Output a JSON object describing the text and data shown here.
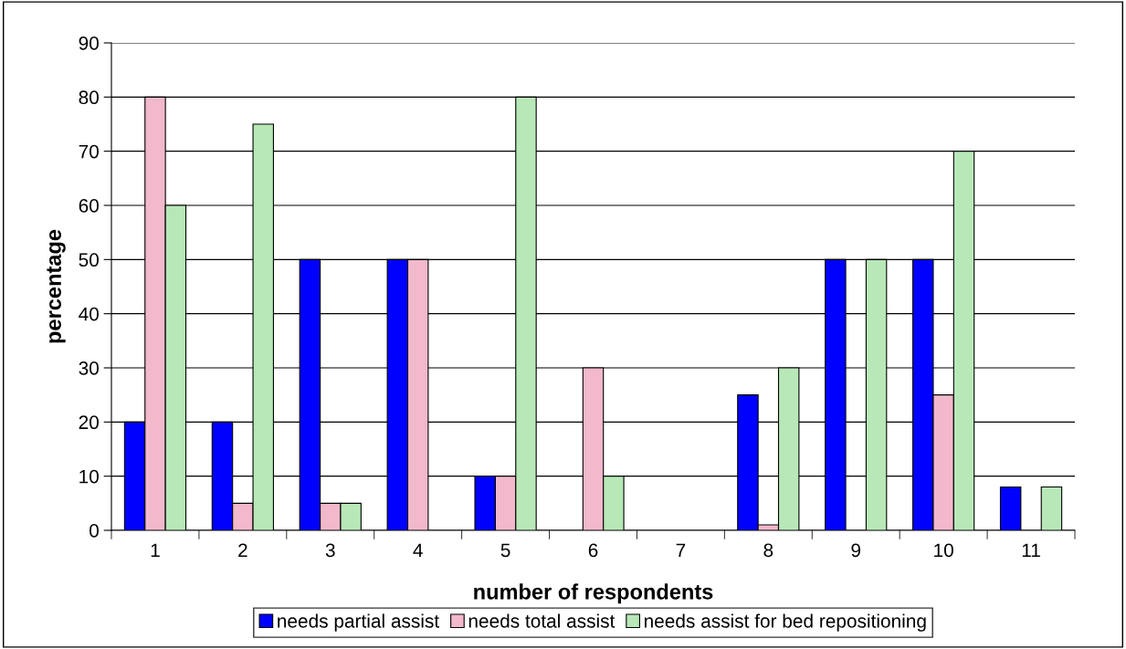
{
  "chart_data": {
    "type": "bar",
    "xlabel": "number of respondents",
    "ylabel": "percentage",
    "categories": [
      "1",
      "2",
      "3",
      "4",
      "5",
      "6",
      "7",
      "8",
      "9",
      "10",
      "11"
    ],
    "series": [
      {
        "name": "needs partial assist",
        "color": "#0000ff",
        "values": [
          20,
          20,
          50,
          50,
          10,
          0,
          0,
          25,
          50,
          50,
          8
        ]
      },
      {
        "name": "needs total assist",
        "color": "#f2b8cc",
        "values": [
          80,
          5,
          5,
          50,
          10,
          30,
          0,
          1,
          0,
          25,
          0
        ]
      },
      {
        "name": "needs assist for bed repositioning",
        "color": "#b8e8b8",
        "values": [
          60,
          75,
          5,
          0,
          80,
          10,
          0,
          30,
          50,
          70,
          8
        ]
      }
    ],
    "ylim": [
      0,
      90
    ],
    "yticks": [
      0,
      10,
      20,
      30,
      40,
      50,
      60,
      70,
      80,
      90
    ],
    "grid": "y",
    "legend": "bottom"
  }
}
